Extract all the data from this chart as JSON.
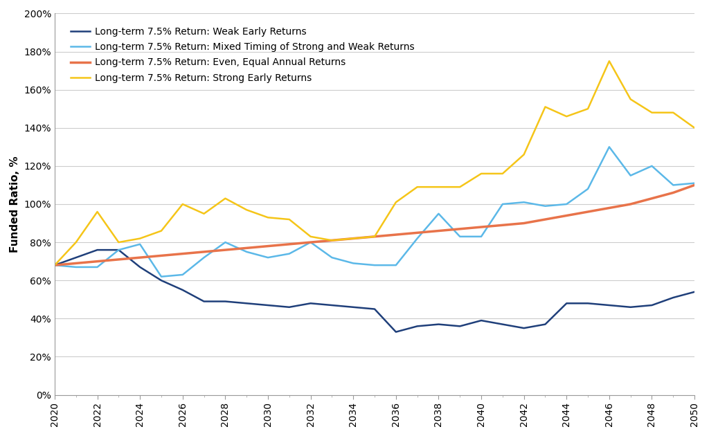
{
  "ylabel": "Funded Ratio, %",
  "years": [
    2020,
    2021,
    2022,
    2023,
    2024,
    2025,
    2026,
    2027,
    2028,
    2029,
    2030,
    2031,
    2032,
    2033,
    2034,
    2035,
    2036,
    2037,
    2038,
    2039,
    2040,
    2041,
    2042,
    2043,
    2044,
    2045,
    2046,
    2047,
    2048,
    2049,
    2050
  ],
  "weak_early": [
    0.68,
    0.72,
    0.76,
    0.76,
    0.67,
    0.6,
    0.55,
    0.49,
    0.49,
    0.48,
    0.47,
    0.46,
    0.48,
    0.47,
    0.46,
    0.45,
    0.33,
    0.36,
    0.37,
    0.36,
    0.39,
    0.37,
    0.35,
    0.37,
    0.48,
    0.48,
    0.47,
    0.46,
    0.47,
    0.51,
    0.54
  ],
  "mixed": [
    0.68,
    0.67,
    0.67,
    0.76,
    0.79,
    0.62,
    0.63,
    0.72,
    0.8,
    0.75,
    0.72,
    0.74,
    0.8,
    0.72,
    0.69,
    0.68,
    0.68,
    0.82,
    0.95,
    0.83,
    0.83,
    1.0,
    1.01,
    0.99,
    1.0,
    1.08,
    1.3,
    1.15,
    1.2,
    1.1,
    1.11
  ],
  "even": [
    0.68,
    0.69,
    0.7,
    0.71,
    0.72,
    0.73,
    0.74,
    0.75,
    0.76,
    0.77,
    0.78,
    0.79,
    0.8,
    0.81,
    0.82,
    0.83,
    0.84,
    0.85,
    0.86,
    0.87,
    0.88,
    0.89,
    0.9,
    0.92,
    0.94,
    0.96,
    0.98,
    1.0,
    1.03,
    1.06,
    1.1
  ],
  "strong_early": [
    0.68,
    0.8,
    0.96,
    0.8,
    0.82,
    0.86,
    1.0,
    0.95,
    1.03,
    0.97,
    0.93,
    0.92,
    0.83,
    0.81,
    0.82,
    0.83,
    1.01,
    1.09,
    1.09,
    1.09,
    1.16,
    1.16,
    1.26,
    1.51,
    1.46,
    1.5,
    1.75,
    1.55,
    1.48,
    1.48,
    1.4
  ],
  "weak_color": "#1F3F7A",
  "mixed_color": "#5BB8E8",
  "even_color": "#E8734A",
  "strong_color": "#F5C518",
  "weak_label": "Long-term 7.5% Return: Weak Early Returns",
  "mixed_label": "Long-term 7.5% Return: Mixed Timing of Strong and Weak Returns",
  "even_label": "Long-term 7.5% Return: Even, Equal Annual Returns",
  "strong_label": "Long-term 7.5% Return: Strong Early Returns",
  "ylim": [
    0.0,
    2.0
  ],
  "yticks": [
    0.0,
    0.2,
    0.4,
    0.6,
    0.8,
    1.0,
    1.2,
    1.4,
    1.6,
    1.8,
    2.0
  ],
  "xtick_labels": [
    2020,
    2022,
    2024,
    2026,
    2028,
    2030,
    2032,
    2034,
    2036,
    2038,
    2040,
    2042,
    2044,
    2046,
    2048,
    2050
  ],
  "all_years": [
    2020,
    2021,
    2022,
    2023,
    2024,
    2025,
    2026,
    2027,
    2028,
    2029,
    2030,
    2031,
    2032,
    2033,
    2034,
    2035,
    2036,
    2037,
    2038,
    2039,
    2040,
    2041,
    2042,
    2043,
    2044,
    2045,
    2046,
    2047,
    2048,
    2049,
    2050
  ]
}
